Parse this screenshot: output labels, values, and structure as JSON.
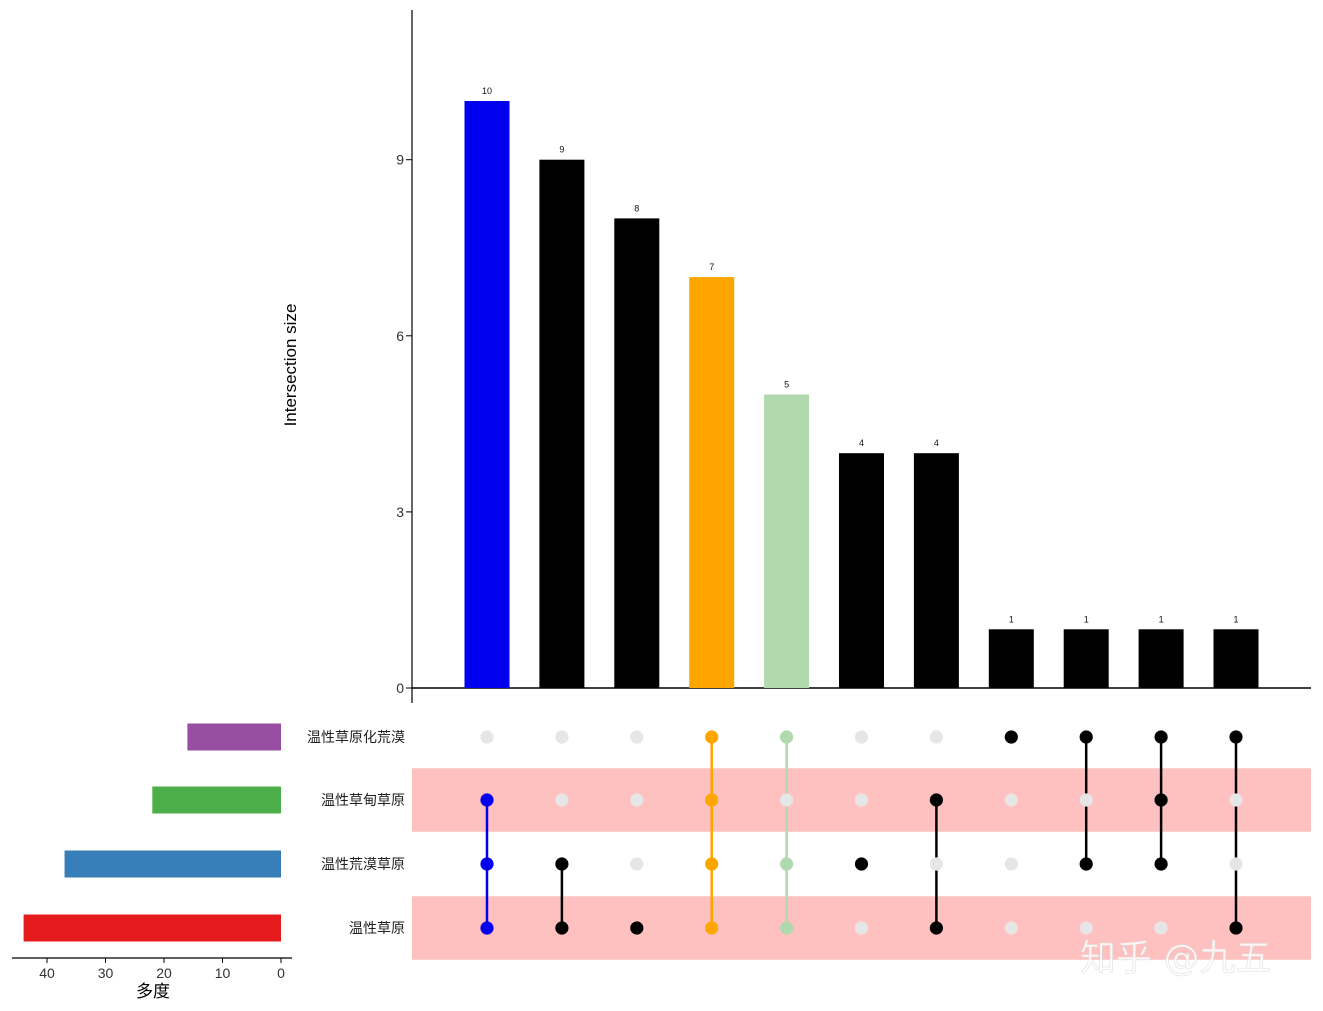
{
  "chart_data": [
    {
      "type": "bar",
      "ylabel": "Intersection size",
      "ylim": [
        0,
        11.5
      ],
      "yticks": [
        0,
        3,
        6,
        9
      ],
      "values": [
        10,
        9,
        8,
        7,
        5,
        4,
        4,
        1,
        1,
        1,
        1
      ],
      "bar_colors": [
        "#0000ee",
        "#000000",
        "#000000",
        "#ffa500",
        "#b0d9ad",
        "#000000",
        "#000000",
        "#000000",
        "#000000",
        "#000000",
        "#000000"
      ],
      "value_labels": [
        "10",
        "9",
        "8",
        "7",
        "5",
        "4",
        "4",
        "1",
        "1",
        "1",
        "1"
      ]
    },
    {
      "type": "bar",
      "orientation": "horizontal",
      "xlabel": "多度",
      "xlim": [
        45,
        0
      ],
      "xticks": [
        40,
        30,
        20,
        10,
        0
      ],
      "xtick_labels": [
        "40",
        "30",
        "20",
        "10",
        "0"
      ],
      "categories": [
        "温性草原化荒漠",
        "温性草甸草原",
        "温性荒漠草原",
        "温性草原"
      ],
      "values": [
        16,
        22,
        37,
        44
      ],
      "colors": [
        "#984ea3",
        "#4daf4a",
        "#377eb8",
        "#e41a1c"
      ]
    },
    {
      "type": "matrix",
      "sets": [
        "温性草原化荒漠",
        "温性草甸草原",
        "温性荒漠草原",
        "温性草原"
      ],
      "membership": [
        [
          1,
          2,
          3
        ],
        [
          2,
          3
        ],
        [
          3
        ],
        [
          0,
          1,
          2,
          3
        ],
        [
          0,
          2,
          3
        ],
        [
          2
        ],
        [
          1,
          3
        ],
        [
          0
        ],
        [
          0,
          2
        ],
        [
          0,
          1,
          2
        ],
        [
          0,
          3
        ]
      ],
      "active_colors": [
        "#0000ee",
        "#000000",
        "#000000",
        "#ffa500",
        "#b0d9ad",
        "#000000",
        "#000000",
        "#000000",
        "#000000",
        "#000000",
        "#000000"
      ],
      "inactive_color": "#e6e6e6",
      "stripe_color": "#ffc0c0"
    }
  ],
  "watermark": "知乎 @九五"
}
